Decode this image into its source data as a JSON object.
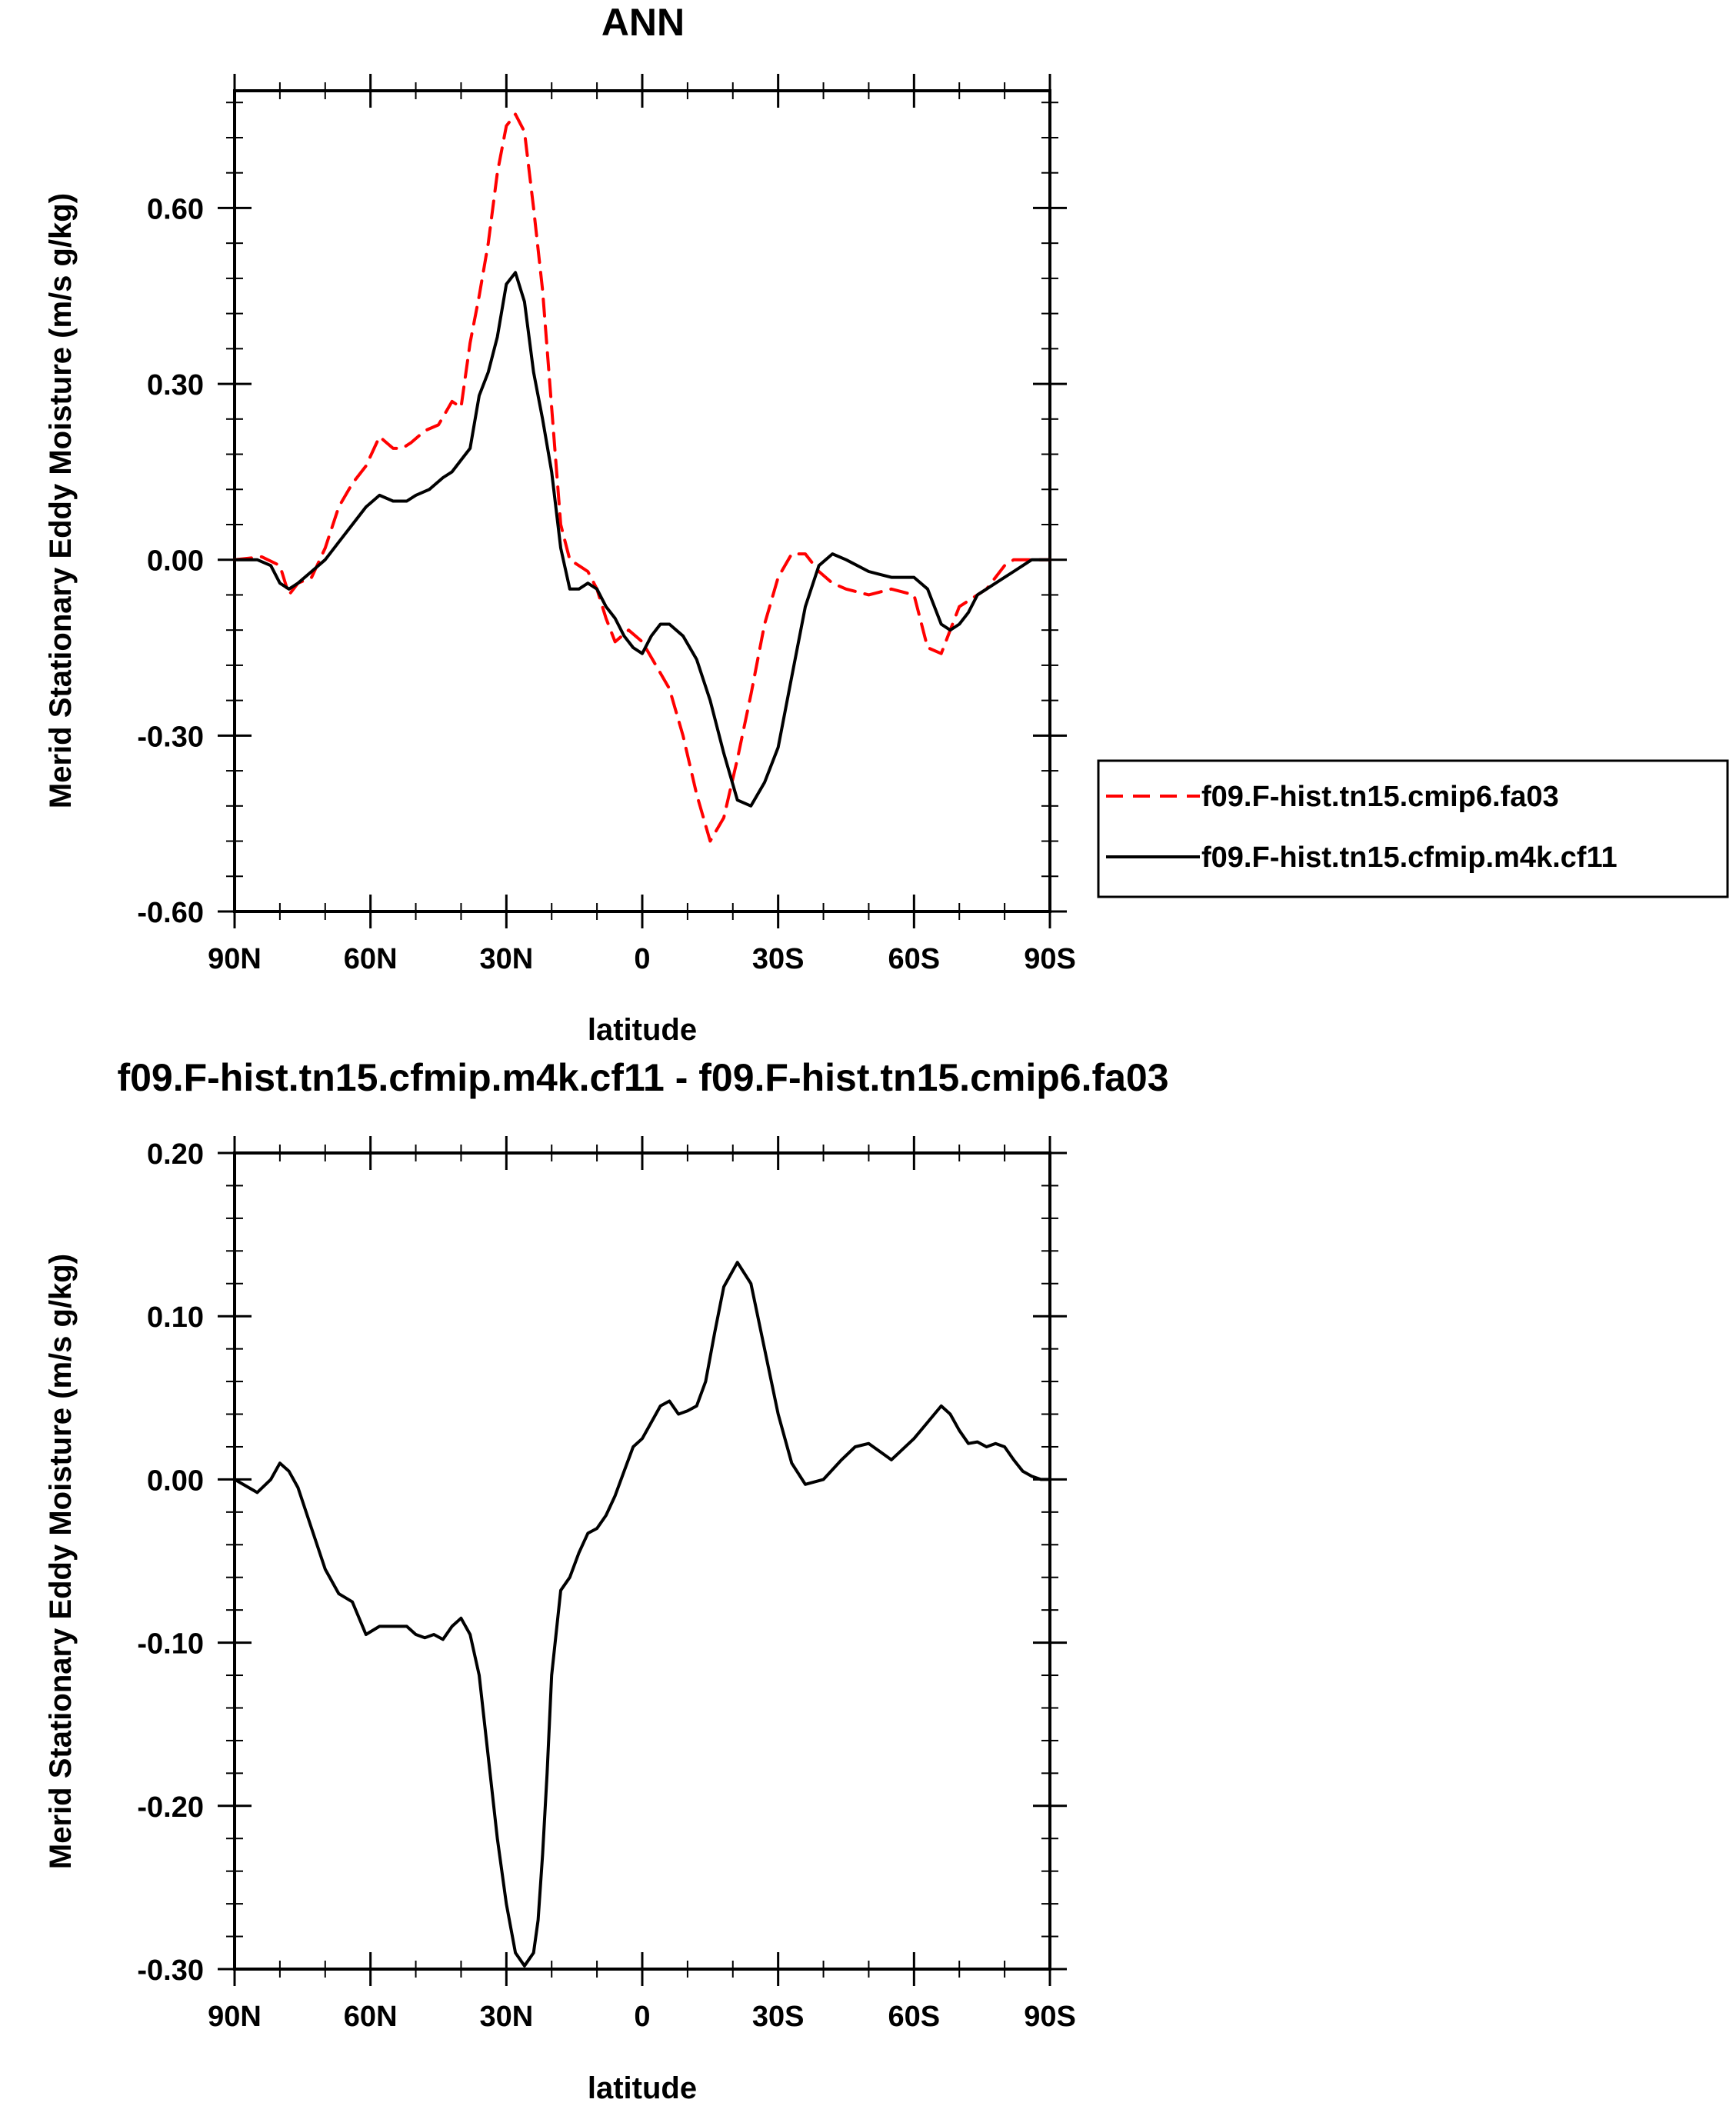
{
  "chart_data": [
    {
      "type": "line",
      "title": "ANN",
      "xlabel": "latitude",
      "ylabel": "Merid Stationary Eddy Moisture (m/s g/kg)",
      "xlim": [
        90,
        -90
      ],
      "ylim": [
        -0.6,
        0.8
      ],
      "x_tick_values": [
        90,
        60,
        30,
        0,
        -30,
        -60,
        -90
      ],
      "x_tick_labels": [
        "90N",
        "60N",
        "30N",
        "0",
        "30S",
        "60S",
        "90S"
      ],
      "y_tick_values": [
        -0.6,
        -0.3,
        0.0,
        0.3,
        0.6
      ],
      "y_tick_labels": [
        "-0.60",
        "-0.30",
        "0.00",
        "0.30",
        "0.60"
      ],
      "legend_position": "right",
      "series": [
        {
          "name": "f09.F-hist.tn15.cmip6.fa03",
          "color": "#ff0000",
          "dash": "dashed",
          "x": [
            90,
            84,
            80,
            78,
            76,
            73,
            70,
            67,
            64,
            61,
            58,
            55,
            53,
            51,
            48,
            45,
            42,
            40,
            38,
            36,
            34,
            32,
            30,
            28,
            26,
            24,
            22,
            20,
            18,
            16,
            14,
            12,
            10,
            8,
            6,
            3,
            0,
            -3,
            -6,
            -9,
            -12,
            -15,
            -18,
            -21,
            -24,
            -27,
            -30,
            -33,
            -36,
            -39,
            -42,
            -45,
            -50,
            -55,
            -60,
            -63,
            -66,
            -68,
            -70,
            -72,
            -74,
            -76,
            -78,
            -80,
            -82,
            -84,
            -86,
            -88,
            -90
          ],
          "y": [
            0,
            0.005,
            -0.01,
            -0.06,
            -0.04,
            -0.03,
            0.02,
            0.09,
            0.13,
            0.16,
            0.21,
            0.19,
            0.19,
            0.2,
            0.22,
            0.23,
            0.27,
            0.26,
            0.37,
            0.45,
            0.54,
            0.66,
            0.74,
            0.76,
            0.73,
            0.6,
            0.46,
            0.26,
            0.06,
            0.0,
            -0.01,
            -0.02,
            -0.05,
            -0.1,
            -0.14,
            -0.12,
            -0.14,
            -0.18,
            -0.22,
            -0.3,
            -0.4,
            -0.48,
            -0.44,
            -0.34,
            -0.23,
            -0.11,
            -0.03,
            0.01,
            0.01,
            -0.02,
            -0.04,
            -0.05,
            -0.06,
            -0.05,
            -0.06,
            -0.15,
            -0.16,
            -0.12,
            -0.08,
            -0.07,
            -0.06,
            -0.05,
            -0.03,
            -0.01,
            0,
            0,
            0,
            0,
            0
          ]
        },
        {
          "name": "f09.F-hist.tn15.cfmip.m4k.cf11",
          "color": "#000000",
          "dash": "solid",
          "x": [
            90,
            85,
            82,
            80,
            78,
            76,
            73,
            70,
            67,
            64,
            61,
            58,
            55,
            52,
            50,
            47,
            44,
            42,
            40,
            38,
            36,
            34,
            32,
            30,
            28,
            26,
            24,
            22,
            20,
            18,
            16,
            14,
            12,
            10,
            8,
            6,
            4,
            2,
            0,
            -2,
            -4,
            -6,
            -9,
            -12,
            -15,
            -18,
            -21,
            -24,
            -27,
            -30,
            -33,
            -36,
            -39,
            -42,
            -45,
            -50,
            -55,
            -60,
            -63,
            -66,
            -68,
            -70,
            -72,
            -74,
            -76,
            -78,
            -80,
            -82,
            -84,
            -86,
            -88,
            -90
          ],
          "y": [
            0,
            0,
            -0.01,
            -0.04,
            -0.05,
            -0.04,
            -0.02,
            0.0,
            0.03,
            0.06,
            0.09,
            0.11,
            0.1,
            0.1,
            0.11,
            0.12,
            0.14,
            0.15,
            0.17,
            0.19,
            0.28,
            0.32,
            0.38,
            0.47,
            0.49,
            0.44,
            0.32,
            0.24,
            0.15,
            0.02,
            -0.05,
            -0.05,
            -0.04,
            -0.05,
            -0.08,
            -0.1,
            -0.13,
            -0.15,
            -0.16,
            -0.13,
            -0.11,
            -0.11,
            -0.13,
            -0.17,
            -0.24,
            -0.33,
            -0.41,
            -0.42,
            -0.38,
            -0.32,
            -0.2,
            -0.08,
            -0.01,
            0.01,
            0.0,
            -0.02,
            -0.03,
            -0.03,
            -0.05,
            -0.11,
            -0.12,
            -0.11,
            -0.09,
            -0.06,
            -0.05,
            -0.04,
            -0.03,
            -0.02,
            -0.01,
            0,
            0,
            0
          ]
        }
      ]
    },
    {
      "type": "line",
      "title": "f09.F-hist.tn15.cfmip.m4k.cf11 - f09.F-hist.tn15.cmip6.fa03",
      "xlabel": "latitude",
      "ylabel": "Merid Stationary Eddy Moisture (m/s g/kg)",
      "xlim": [
        90,
        -90
      ],
      "ylim": [
        -0.3,
        0.2
      ],
      "x_tick_values": [
        90,
        60,
        30,
        0,
        -30,
        -60,
        -90
      ],
      "x_tick_labels": [
        "90N",
        "60N",
        "30N",
        "0",
        "30S",
        "60S",
        "90S"
      ],
      "y_tick_values": [
        -0.3,
        -0.2,
        -0.1,
        0.0,
        0.1,
        0.2
      ],
      "y_tick_labels": [
        "-0.30",
        "-0.20",
        "-0.10",
        "0.00",
        "0.10",
        "0.20"
      ],
      "series": [
        {
          "color": "#000000",
          "dash": "solid",
          "x": [
            90,
            85,
            82,
            80,
            78,
            76,
            73,
            70,
            67,
            64,
            61,
            58,
            55,
            52,
            50,
            48,
            46,
            44,
            42,
            40,
            38,
            36,
            34,
            32,
            30,
            28,
            26,
            24,
            23,
            22,
            21,
            20,
            18,
            16,
            14,
            12,
            10,
            8,
            6,
            4,
            2,
            0,
            -2,
            -4,
            -6,
            -8,
            -10,
            -12,
            -14,
            -16,
            -18,
            -21,
            -24,
            -27,
            -30,
            -33,
            -36,
            -40,
            -44,
            -47,
            -50,
            -55,
            -60,
            -63,
            -66,
            -68,
            -70,
            -72,
            -74,
            -76,
            -78,
            -80,
            -82,
            -84,
            -86,
            -88,
            -90
          ],
          "y": [
            0,
            -0.008,
            0.0,
            0.01,
            0.005,
            -0.005,
            -0.03,
            -0.055,
            -0.07,
            -0.075,
            -0.095,
            -0.09,
            -0.09,
            -0.09,
            -0.095,
            -0.097,
            -0.095,
            -0.098,
            -0.09,
            -0.085,
            -0.095,
            -0.12,
            -0.17,
            -0.22,
            -0.26,
            -0.29,
            -0.298,
            -0.29,
            -0.27,
            -0.23,
            -0.18,
            -0.12,
            -0.068,
            -0.06,
            -0.045,
            -0.033,
            -0.03,
            -0.022,
            -0.01,
            0.005,
            0.02,
            0.025,
            0.035,
            0.045,
            0.048,
            0.04,
            0.042,
            0.045,
            0.06,
            0.09,
            0.118,
            0.133,
            0.12,
            0.08,
            0.04,
            0.01,
            -0.003,
            0.0,
            0.012,
            0.02,
            0.022,
            0.012,
            0.025,
            0.035,
            0.045,
            0.04,
            0.03,
            0.022,
            0.023,
            0.02,
            0.022,
            0.02,
            0.012,
            0.005,
            0.002,
            0,
            0
          ]
        }
      ]
    }
  ]
}
